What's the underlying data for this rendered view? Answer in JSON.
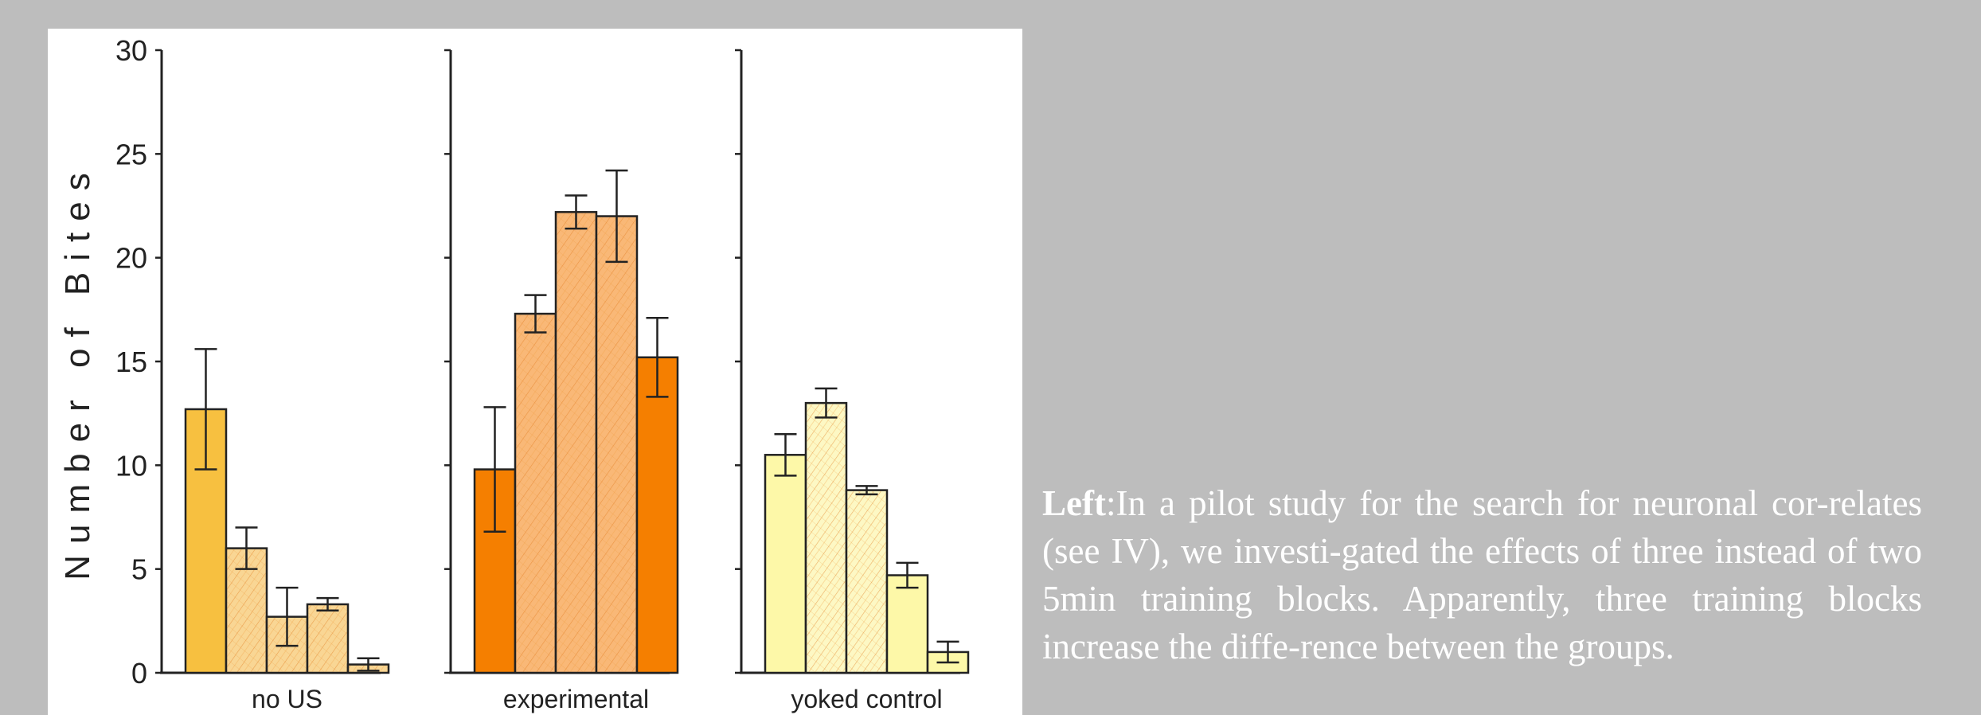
{
  "chart_data": {
    "type": "bar",
    "ylabel": "Number of Bites",
    "ylim": [
      0,
      30
    ],
    "yticks": [
      "0",
      "5",
      "10",
      "15",
      "20",
      "25",
      "30"
    ],
    "panels": [
      {
        "label": "no US",
        "bars": [
          {
            "value": 12.7,
            "err": 2.9,
            "fill": "#f7c040",
            "hatched": false
          },
          {
            "value": 6.0,
            "err": 1.0,
            "fill": "#f9d694",
            "hatched": true
          },
          {
            "value": 2.7,
            "err": 1.4,
            "fill": "#f9d694",
            "hatched": true
          },
          {
            "value": 3.3,
            "err": 0.3,
            "fill": "#f9d694",
            "hatched": true
          },
          {
            "value": 0.4,
            "err": 0.3,
            "fill": "#f9d694",
            "hatched": true
          }
        ]
      },
      {
        "label": "experimental",
        "bars": [
          {
            "value": 9.8,
            "err": 3.0,
            "fill": "#f57f00",
            "hatched": false
          },
          {
            "value": 17.3,
            "err": 0.9,
            "fill": "#f9b877",
            "hatched": true
          },
          {
            "value": 22.2,
            "err": 0.8,
            "fill": "#f9b877",
            "hatched": true
          },
          {
            "value": 22.0,
            "err": 2.2,
            "fill": "#f9b877",
            "hatched": true
          },
          {
            "value": 15.2,
            "err": 1.9,
            "fill": "#f57f00",
            "hatched": false
          }
        ]
      },
      {
        "label": "yoked control",
        "bars": [
          {
            "value": 10.5,
            "err": 1.0,
            "fill": "#fdf8a8",
            "hatched": false
          },
          {
            "value": 13.0,
            "err": 0.7,
            "fill": "#fdf8c4",
            "hatched": true
          },
          {
            "value": 8.8,
            "err": 0.2,
            "fill": "#fdf8c4",
            "hatched": true
          },
          {
            "value": 4.7,
            "err": 0.6,
            "fill": "#fdf8a8",
            "hatched": false
          },
          {
            "value": 1.0,
            "err": 0.5,
            "fill": "#fdf8a8",
            "hatched": false
          }
        ]
      }
    ]
  },
  "caption": {
    "lead": "Left",
    "text": ":In a pilot study for the search for neuronal cor-relates (see IV), we investi-gated the effects of three instead of two 5min training blocks. Apparently, three training blocks increase the diffe-rence between the groups."
  }
}
